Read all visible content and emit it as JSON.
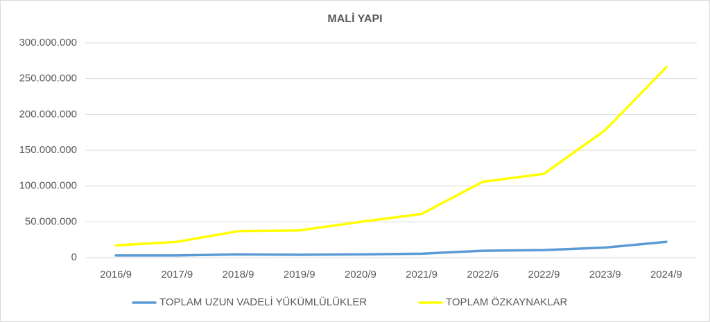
{
  "chart_data": {
    "type": "line",
    "title": "MALİ YAPI",
    "categories": [
      "2016/9",
      "2017/9",
      "2018/9",
      "2019/9",
      "2020/9",
      "2021/9",
      "2022/6",
      "2022/9",
      "2023/9",
      "2024/9"
    ],
    "series": [
      {
        "name": "TOPLAM UZUN VADELİ YÜKÜMLÜLÜKLER",
        "color": "#5b9bd5",
        "values": [
          3000000,
          3000000,
          4500000,
          4000000,
          4500000,
          5500000,
          9500000,
          10500000,
          14000000,
          22000000
        ]
      },
      {
        "name": "TOPLAM ÖZKAYNAKLAR",
        "color": "#ffff00",
        "values": [
          17000000,
          22000000,
          37000000,
          38000000,
          50000000,
          61000000,
          106000000,
          117000000,
          178000000,
          266000000
        ]
      }
    ],
    "ylim": [
      0,
      300000000
    ],
    "yticks": [
      0,
      {
        "value": 50000000,
        "label": "50.000.000"
      },
      {
        "value": 100000000,
        "label": "100.000.000"
      },
      {
        "value": 150000000,
        "label": "150.000.000"
      },
      {
        "value": 200000000,
        "label": "200.000.000"
      },
      {
        "value": 250000000,
        "label": "250.000.000"
      },
      {
        "value": 300000000,
        "label": "300.000.000"
      }
    ],
    "grid": true,
    "legend": "bottom"
  }
}
